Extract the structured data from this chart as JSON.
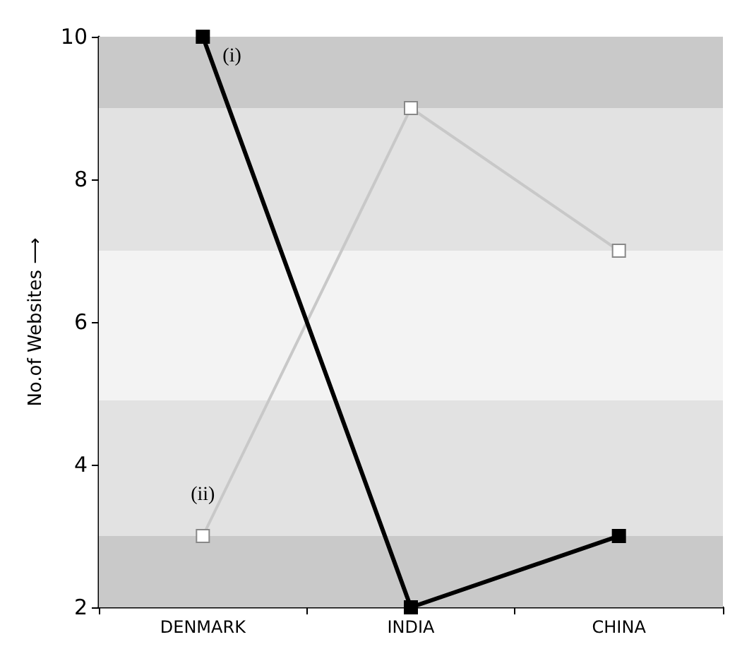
{
  "chart_data": {
    "type": "line",
    "ylabel": "No.of Websites ⟶",
    "categories": [
      "DENMARK",
      "INDIA",
      "CHINA"
    ],
    "series": [
      {
        "name": "(i)",
        "color": "#000000",
        "values": [
          10,
          2,
          3
        ]
      },
      {
        "name": "(ii)",
        "color": "#c8c8c8",
        "values": [
          3,
          9,
          7
        ]
      }
    ],
    "ylim": [
      2,
      10
    ],
    "yticks": [
      2,
      4,
      6,
      8,
      10
    ],
    "grid": false,
    "legend": false,
    "marker": "square",
    "line_style": "solid",
    "bands": [
      {
        "axis": "y",
        "from": 9,
        "to": 10,
        "color": "#c9c9c9"
      },
      {
        "axis": "y",
        "from": 7,
        "to": 9,
        "color": "#e2e2e2"
      },
      {
        "axis": "y",
        "from": 4.9,
        "to": 7,
        "color": "#f3f3f3"
      },
      {
        "axis": "y",
        "from": 3,
        "to": 4.9,
        "color": "#e2e2e2"
      },
      {
        "axis": "y",
        "from": 2,
        "to": 3,
        "color": "#c9c9c9"
      }
    ]
  }
}
